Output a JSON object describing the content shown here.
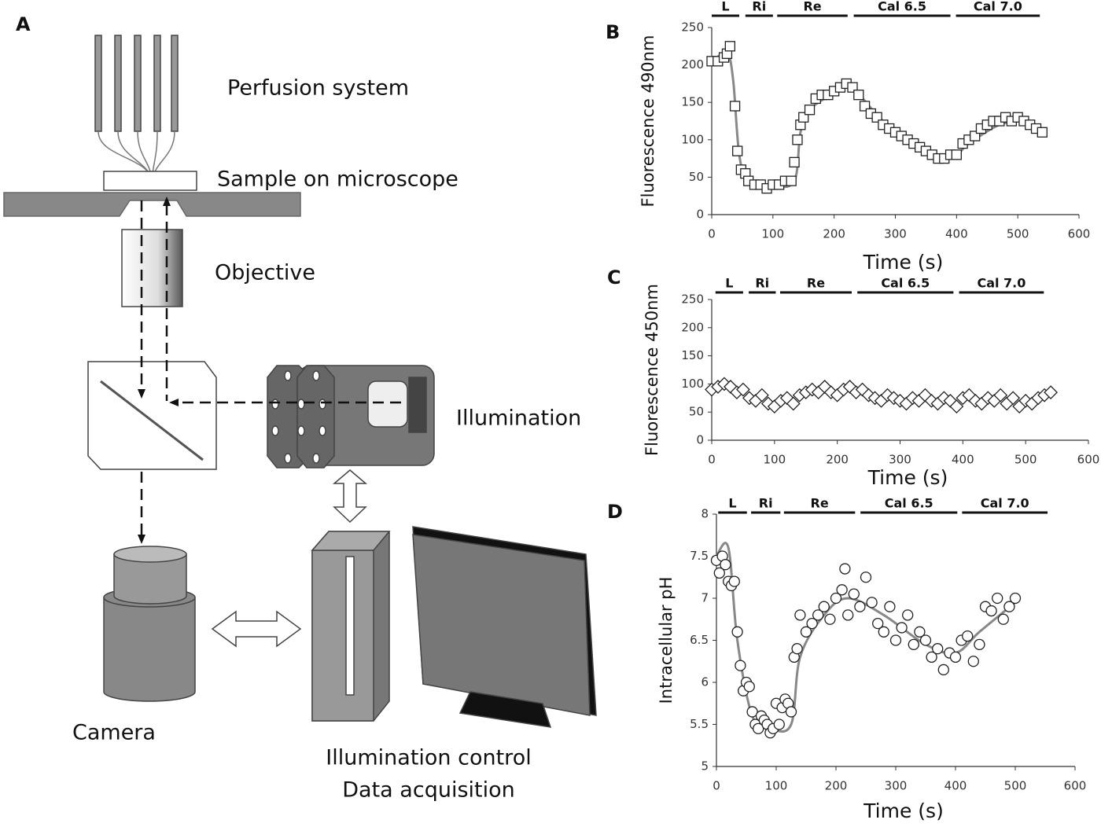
{
  "diagram": {
    "panel": "A",
    "labels": {
      "perfusion": "Perfusion system",
      "sample": "Sample on microscope",
      "objective": "Objective",
      "illumination": "Illumination",
      "camera": "Camera",
      "control": "Illumination control",
      "acquisition": "Data acquisition"
    }
  },
  "chart_data": [
    {
      "type": "scatter",
      "panel": "B",
      "marker": "square",
      "xlabel": "Time (s)",
      "ylabel": "Fluorescence 490nm",
      "xlim": [
        0,
        600
      ],
      "xticks": [
        0,
        100,
        200,
        300,
        400,
        500,
        600
      ],
      "ylim": [
        0,
        250
      ],
      "yticks": [
        0,
        50,
        100,
        150,
        200,
        250
      ],
      "periods": [
        {
          "label": "L",
          "start": 0,
          "end": 45
        },
        {
          "label": "Ri",
          "start": 55,
          "end": 100
        },
        {
          "label": "Re",
          "start": 107,
          "end": 222
        },
        {
          "label": "Cal 6.5",
          "start": 232,
          "end": 390
        },
        {
          "label": "Cal 7.0",
          "start": 399,
          "end": 536
        }
      ],
      "x": [
        0,
        10,
        20,
        25,
        30,
        38,
        42,
        48,
        55,
        60,
        70,
        80,
        90,
        100,
        110,
        120,
        130,
        135,
        140,
        145,
        150,
        160,
        170,
        180,
        190,
        200,
        210,
        220,
        230,
        240,
        250,
        260,
        270,
        280,
        290,
        300,
        310,
        320,
        330,
        340,
        350,
        360,
        370,
        380,
        390,
        400,
        410,
        420,
        430,
        440,
        450,
        460,
        470,
        480,
        490,
        500,
        510,
        520,
        530,
        540
      ],
      "values": [
        205,
        205,
        210,
        215,
        225,
        145,
        85,
        60,
        55,
        45,
        40,
        40,
        35,
        40,
        40,
        45,
        45,
        70,
        100,
        120,
        130,
        140,
        155,
        160,
        160,
        165,
        170,
        175,
        170,
        160,
        145,
        135,
        130,
        120,
        115,
        110,
        105,
        100,
        95,
        90,
        85,
        80,
        75,
        75,
        80,
        80,
        95,
        100,
        105,
        115,
        120,
        125,
        125,
        130,
        125,
        130,
        125,
        120,
        115,
        110
      ],
      "fit": {
        "color": "#888888",
        "x": [
          0,
          25,
          35,
          45,
          60,
          100,
          135,
          145,
          160,
          200,
          230,
          280,
          340,
          390,
          420,
          470,
          510,
          540
        ],
        "values": [
          205,
          215,
          180,
          80,
          45,
          38,
          45,
          110,
          140,
          162,
          168,
          125,
          90,
          75,
          95,
          120,
          125,
          115
        ]
      }
    },
    {
      "type": "scatter",
      "panel": "C",
      "marker": "diamond",
      "xlabel": "Time (s)",
      "ylabel": "Fluorescence 450nm",
      "xlim": [
        0,
        600
      ],
      "xticks": [
        0,
        100,
        200,
        300,
        400,
        500,
        600
      ],
      "ylim": [
        0,
        250
      ],
      "yticks": [
        0,
        50,
        100,
        150,
        200,
        250
      ],
      "periods": [
        {
          "label": "L",
          "start": 6,
          "end": 50
        },
        {
          "label": "Ri",
          "start": 59,
          "end": 102
        },
        {
          "label": "Re",
          "start": 109,
          "end": 223
        },
        {
          "label": "Cal 6.5",
          "start": 232,
          "end": 385
        },
        {
          "label": "Cal 7.0",
          "start": 394,
          "end": 529
        }
      ],
      "x": [
        0,
        10,
        20,
        30,
        40,
        50,
        60,
        70,
        80,
        90,
        100,
        110,
        120,
        130,
        140,
        150,
        160,
        170,
        180,
        190,
        200,
        210,
        220,
        230,
        240,
        250,
        260,
        270,
        280,
        290,
        300,
        310,
        320,
        330,
        340,
        350,
        360,
        370,
        380,
        390,
        400,
        410,
        420,
        430,
        440,
        450,
        460,
        470,
        480,
        490,
        500,
        510,
        520,
        530,
        540
      ],
      "values": [
        90,
        95,
        100,
        95,
        85,
        90,
        75,
        70,
        80,
        65,
        60,
        70,
        75,
        65,
        80,
        85,
        90,
        85,
        95,
        85,
        80,
        90,
        95,
        85,
        90,
        80,
        75,
        70,
        80,
        75,
        70,
        65,
        75,
        70,
        80,
        70,
        65,
        75,
        70,
        60,
        75,
        80,
        70,
        65,
        75,
        70,
        80,
        65,
        75,
        60,
        70,
        65,
        75,
        80,
        85
      ]
    },
    {
      "type": "scatter",
      "panel": "D",
      "marker": "circle",
      "xlabel": "Time (s)",
      "ylabel": "Intracellular pH",
      "xlim": [
        0,
        600
      ],
      "xticks": [
        0,
        100,
        200,
        300,
        400,
        500,
        600
      ],
      "ylim": [
        5,
        8
      ],
      "yticks": [
        5,
        5.5,
        6,
        6.5,
        7,
        7.5,
        8
      ],
      "periods": [
        {
          "label": "L",
          "start": 3,
          "end": 51
        },
        {
          "label": "Ri",
          "start": 58,
          "end": 107
        },
        {
          "label": "Re",
          "start": 113,
          "end": 232
        },
        {
          "label": "Cal 6.5",
          "start": 241,
          "end": 403
        },
        {
          "label": "Cal 7.0",
          "start": 411,
          "end": 554
        }
      ],
      "x": [
        0,
        5,
        10,
        15,
        20,
        25,
        30,
        35,
        40,
        45,
        50,
        55,
        60,
        65,
        70,
        75,
        80,
        85,
        90,
        95,
        100,
        105,
        110,
        115,
        120,
        125,
        130,
        135,
        140,
        150,
        160,
        170,
        180,
        190,
        200,
        210,
        215,
        220,
        230,
        240,
        250,
        260,
        270,
        280,
        290,
        300,
        310,
        320,
        330,
        340,
        350,
        360,
        370,
        380,
        390,
        400,
        410,
        420,
        430,
        440,
        450,
        460,
        470,
        480,
        490,
        500
      ],
      "values": [
        7.45,
        7.3,
        7.5,
        7.4,
        7.2,
        7.15,
        7.2,
        6.6,
        6.2,
        5.9,
        6.0,
        5.95,
        5.65,
        5.5,
        5.45,
        5.6,
        5.55,
        5.5,
        5.4,
        5.45,
        5.75,
        5.5,
        5.7,
        5.8,
        5.75,
        5.65,
        6.3,
        6.4,
        6.8,
        6.6,
        6.7,
        6.8,
        6.9,
        6.75,
        7.0,
        7.1,
        7.35,
        6.8,
        7.05,
        6.9,
        7.25,
        6.95,
        6.7,
        6.6,
        6.9,
        6.5,
        6.65,
        6.8,
        6.45,
        6.6,
        6.5,
        6.3,
        6.4,
        6.15,
        6.35,
        6.3,
        6.5,
        6.55,
        6.25,
        6.45,
        6.9,
        6.85,
        7.0,
        6.75,
        6.9,
        7.0
      ],
      "fit": {
        "color": "#888888",
        "x": [
          0,
          20,
          35,
          60,
          90,
          125,
          140,
          180,
          220,
          280,
          350,
          400,
          440,
          500
        ],
        "values": [
          7.5,
          7.6,
          6.5,
          5.6,
          5.45,
          5.5,
          6.3,
          6.8,
          7.0,
          6.8,
          6.45,
          6.35,
          6.6,
          6.95
        ]
      }
    }
  ]
}
